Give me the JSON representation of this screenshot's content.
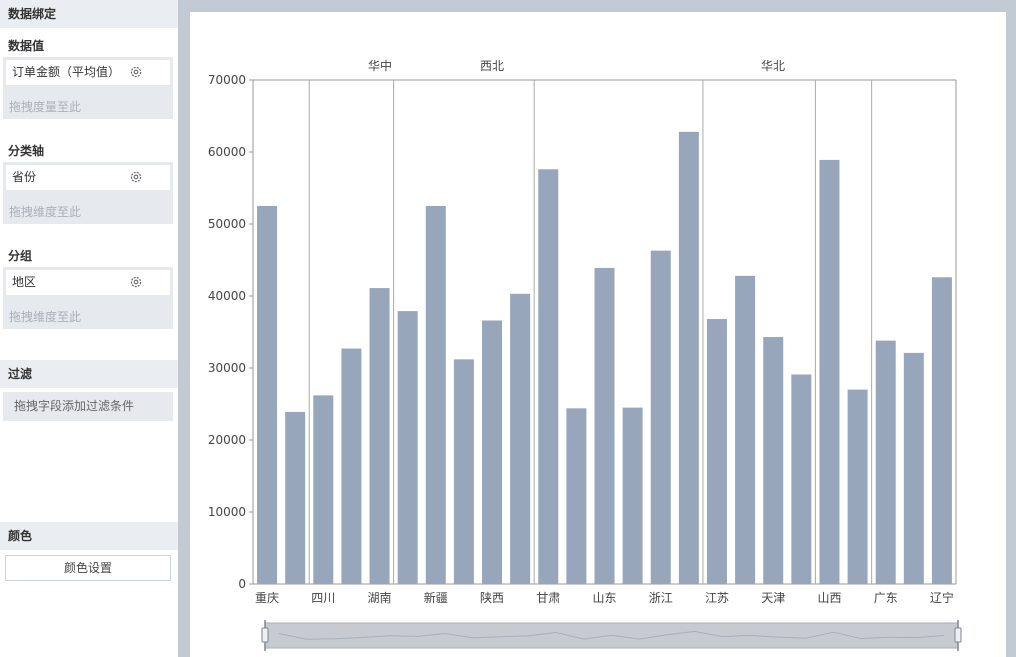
{
  "sidebar": {
    "title": "数据绑定",
    "value_section": {
      "label": "数据值",
      "field": "订单金额（平均值）",
      "hint": "拖拽度量至此"
    },
    "category_section": {
      "label": "分类轴",
      "field": "省份",
      "hint": "拖拽维度至此"
    },
    "group_section": {
      "label": "分组",
      "field": "地区",
      "hint": "拖拽维度至此"
    },
    "filter_section": {
      "label": "过滤",
      "hint": "拖拽字段添加过滤条件"
    },
    "color_section": {
      "label": "颜色",
      "button": "颜色设置"
    }
  },
  "colors": {
    "bar": "#98a6bb",
    "axis": "#999999",
    "divider": "#aaaaaa"
  },
  "chart_data": {
    "type": "bar",
    "ylim": [
      0,
      70000
    ],
    "yticks": [
      0,
      10000,
      20000,
      30000,
      40000,
      50000,
      60000,
      70000
    ],
    "x_labels": [
      "重庆",
      "四川",
      "湖南",
      "新疆",
      "陕西",
      "甘肃",
      "山东",
      "浙江",
      "江苏",
      "天津",
      "山西",
      "广东",
      "辽宁"
    ],
    "values": [
      52500,
      23900,
      26200,
      32700,
      41100,
      37900,
      52500,
      31200,
      36600,
      40300,
      57600,
      24400,
      43900,
      24500,
      46300,
      62800,
      36800,
      42800,
      34300,
      29100,
      58900,
      27000,
      33800,
      32100,
      42600
    ],
    "group_labels": [
      "华中",
      "西北",
      "华北"
    ],
    "grid": false
  }
}
